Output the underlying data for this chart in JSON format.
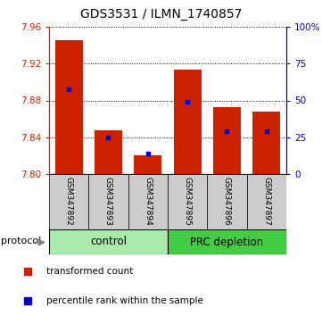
{
  "title": "GDS3531 / ILMN_1740857",
  "categories": [
    "GSM347892",
    "GSM347893",
    "GSM347894",
    "GSM347895",
    "GSM347896",
    "GSM347897"
  ],
  "red_bar_tops": [
    7.945,
    7.848,
    7.82,
    7.913,
    7.873,
    7.868
  ],
  "blue_marker_values": [
    7.892,
    7.84,
    7.822,
    7.879,
    7.847,
    7.847
  ],
  "y_min": 7.8,
  "y_max": 7.96,
  "y_ticks": [
    7.8,
    7.84,
    7.88,
    7.92,
    7.96
  ],
  "right_y_ticks": [
    0,
    25,
    50,
    75,
    100
  ],
  "right_y_labels": [
    "0",
    "25",
    "50",
    "75",
    "100%"
  ],
  "bar_color": "#CC2200",
  "blue_color": "#0000CC",
  "left_axis_color": "#CC2200",
  "right_axis_color": "#0000BB",
  "group_control_color": "#aaeaaa",
  "group_prc_color": "#44cc44",
  "xlabel_bg_color": "#cccccc",
  "legend_red_label": "transformed count",
  "legend_blue_label": "percentile rank within the sample",
  "protocol_label": "protocol"
}
